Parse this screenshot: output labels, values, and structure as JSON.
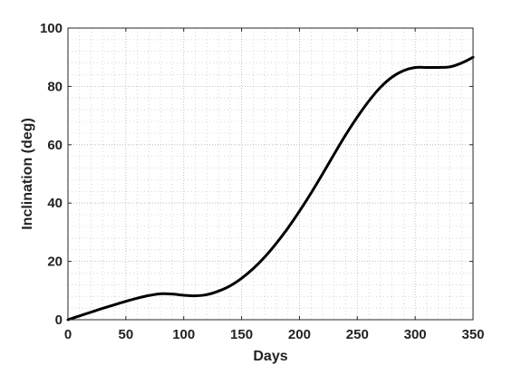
{
  "chart_data": {
    "type": "line",
    "title": "",
    "xlabel": "Days",
    "ylabel": "Inclination (deg)",
    "xlim": [
      0,
      350
    ],
    "ylim": [
      0,
      100
    ],
    "xticks": [
      0,
      50,
      100,
      150,
      200,
      250,
      300,
      350
    ],
    "yticks": [
      0,
      20,
      40,
      60,
      80,
      100
    ],
    "xtick_labels": [
      "0",
      "50",
      "100",
      "150",
      "200",
      "250",
      "300",
      "350"
    ],
    "ytick_labels": [
      "0",
      "20",
      "40",
      "60",
      "80",
      "100"
    ],
    "grid": true,
    "minor_grid": true,
    "legend": "none",
    "line_color": "#000000",
    "series": [
      {
        "x": [
          0,
          10,
          20,
          30,
          40,
          50,
          60,
          70,
          80,
          90,
          100,
          110,
          120,
          130,
          140,
          150,
          160,
          170,
          180,
          190,
          200,
          210,
          220,
          230,
          240,
          250,
          260,
          270,
          280,
          290,
          300,
          310,
          320,
          330,
          340,
          350
        ],
        "y": [
          0,
          1.3,
          2.6,
          3.9,
          5.1,
          6.3,
          7.4,
          8.3,
          8.9,
          8.8,
          8.4,
          8.2,
          8.6,
          9.8,
          11.6,
          14.2,
          17.5,
          21.5,
          26.2,
          31.4,
          37.2,
          43.4,
          50.0,
          56.8,
          63.4,
          69.5,
          75.0,
          79.7,
          83.2,
          85.4,
          86.5,
          86.5,
          86.5,
          86.7,
          88.0,
          90.0
        ]
      }
    ]
  }
}
